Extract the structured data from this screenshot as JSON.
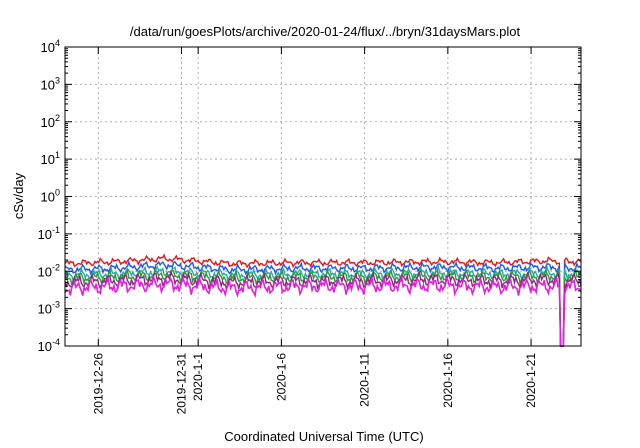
{
  "chart_data": {
    "type": "line",
    "title": "/data/run/goesPlots/archive/2020-01-24/flux/../bryn/31daysMars.plot",
    "xlabel": "Coordinated Universal Time (UTC)",
    "ylabel": "cSv/day",
    "y_scale": "log",
    "ylim": [
      0.0001,
      10000
    ],
    "y_ticks": [
      {
        "value": 0.0001,
        "base": "10",
        "exp": "-4"
      },
      {
        "value": 0.001,
        "base": "10",
        "exp": "-3"
      },
      {
        "value": 0.01,
        "base": "10",
        "exp": "-2"
      },
      {
        "value": 0.1,
        "base": "10",
        "exp": "-1"
      },
      {
        "value": 1,
        "base": "10",
        "exp": "0"
      },
      {
        "value": 10,
        "base": "10",
        "exp": "1"
      },
      {
        "value": 100,
        "base": "10",
        "exp": "2"
      },
      {
        "value": 1000,
        "base": "10",
        "exp": "3"
      },
      {
        "value": 10000,
        "base": "10",
        "exp": "4"
      }
    ],
    "xlim": [
      "2019-12-24",
      "2020-01-24"
    ],
    "x_ticks": [
      {
        "date": "2019-12-26",
        "label": "2019-12-26"
      },
      {
        "date": "2019-12-31",
        "label": "2019-12-31"
      },
      {
        "date": "2020-01-01",
        "label": "2020-1-1"
      },
      {
        "date": "2020-01-06",
        "label": "2020-1-6"
      },
      {
        "date": "2020-01-11",
        "label": "2020-1-11"
      },
      {
        "date": "2020-01-16",
        "label": "2020-1-16"
      },
      {
        "date": "2020-01-21",
        "label": "2020-1-21"
      }
    ],
    "grid": true,
    "dropout": {
      "start": "2020-01-22",
      "end": "2020-01-22"
    },
    "series": [
      {
        "color": "#e8141c",
        "x": [
          "2019-12-24",
          "2019-12-27",
          "2019-12-30",
          "2020-01-03",
          "2020-01-07",
          "2020-01-11",
          "2020-01-15",
          "2020-01-19",
          "2020-01-22",
          "2020-01-24"
        ],
        "values": [
          0.016,
          0.018,
          0.022,
          0.016,
          0.017,
          0.017,
          0.018,
          0.017,
          0.019,
          0.018
        ]
      },
      {
        "color": "#1c5ae8",
        "x": [
          "2019-12-24",
          "2019-12-27",
          "2019-12-30",
          "2020-01-03",
          "2020-01-07",
          "2020-01-11",
          "2020-01-15",
          "2020-01-19",
          "2020-01-22",
          "2020-01-24"
        ],
        "values": [
          0.011,
          0.012,
          0.015,
          0.011,
          0.012,
          0.012,
          0.013,
          0.012,
          0.013,
          0.012
        ]
      },
      {
        "color": "#2aa8a0",
        "x": [
          "2019-12-24",
          "2019-12-27",
          "2019-12-30",
          "2020-01-03",
          "2020-01-07",
          "2020-01-11",
          "2020-01-15",
          "2020-01-19",
          "2020-01-22",
          "2020-01-24"
        ],
        "values": [
          0.008,
          0.0085,
          0.01,
          0.008,
          0.0085,
          0.0085,
          0.009,
          0.0085,
          0.009,
          0.0085
        ]
      },
      {
        "color": "#2a9a3a",
        "x": [
          "2019-12-24",
          "2019-12-27",
          "2019-12-30",
          "2020-01-03",
          "2020-01-07",
          "2020-01-11",
          "2020-01-15",
          "2020-01-19",
          "2020-01-22",
          "2020-01-24"
        ],
        "values": [
          0.0065,
          0.007,
          0.008,
          0.0065,
          0.007,
          0.007,
          0.0075,
          0.007,
          0.0075,
          0.007
        ]
      },
      {
        "color": "#8a2a7a",
        "x": [
          "2019-12-24",
          "2019-12-27",
          "2019-12-30",
          "2020-01-03",
          "2020-01-07",
          "2020-01-11",
          "2020-01-15",
          "2020-01-19",
          "2020-01-22",
          "2020-01-24"
        ],
        "values": [
          0.005,
          0.0055,
          0.0065,
          0.005,
          0.0055,
          0.0055,
          0.006,
          0.0055,
          0.006,
          0.0055
        ]
      },
      {
        "color": "#e81ce0",
        "x": [
          "2019-12-24",
          "2019-12-27",
          "2019-12-30",
          "2020-01-03",
          "2020-01-07",
          "2020-01-11",
          "2020-01-15",
          "2020-01-19",
          "2020-01-22",
          "2020-01-24"
        ],
        "values": [
          0.0035,
          0.004,
          0.0045,
          0.0035,
          0.004,
          0.004,
          0.0042,
          0.0038,
          0.004,
          0.0038
        ]
      }
    ]
  }
}
